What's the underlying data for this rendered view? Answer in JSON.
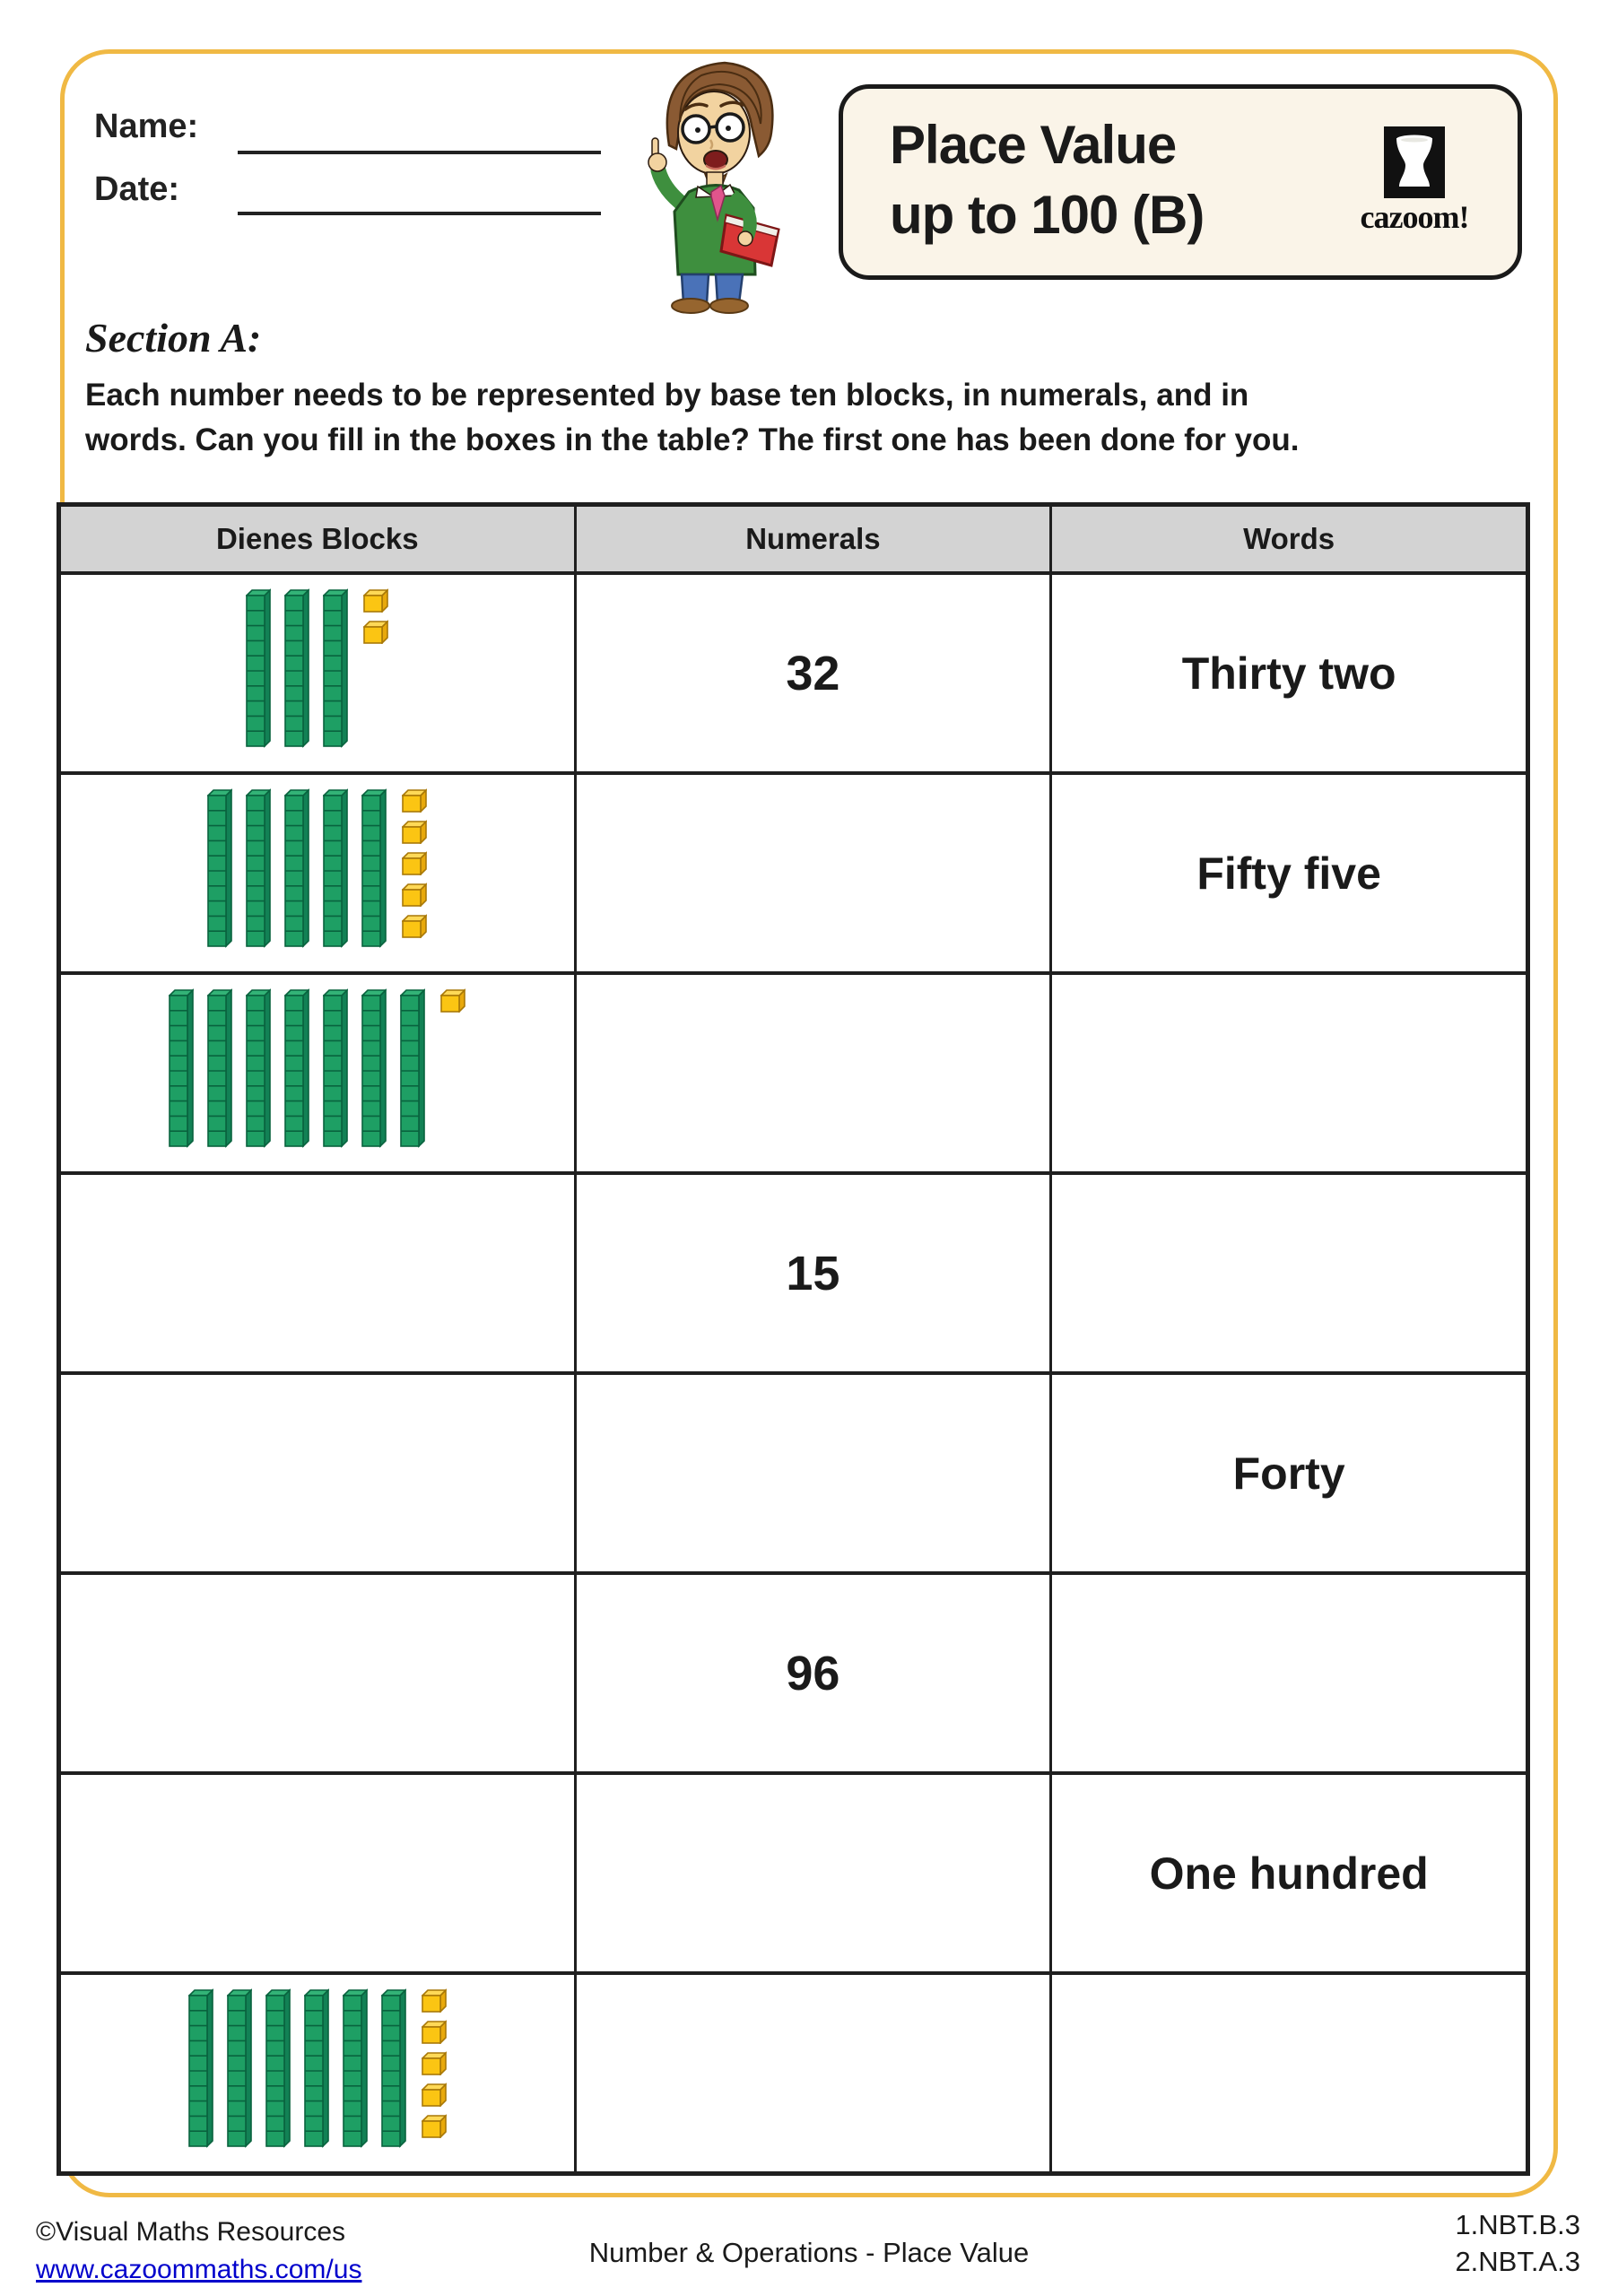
{
  "header": {
    "name_label": "Name:",
    "date_label": "Date:",
    "title_line1": "Place Value",
    "title_line2": "up to 100 (B)",
    "logo_text": "cazoom!"
  },
  "section": {
    "heading": "Section A:",
    "instructions_line1": "Each number needs to be represented by base ten blocks, in numerals, and in",
    "instructions_line2": "words. Can you fill in the boxes in the table? The first one has been done for you."
  },
  "table": {
    "columns": [
      "Dienes Blocks",
      "Numerals",
      "Words"
    ],
    "rows": [
      {
        "blocks": {
          "rods": 3,
          "units": 2
        },
        "numeral": "32",
        "word": "Thirty two"
      },
      {
        "blocks": {
          "rods": 5,
          "units": 5
        },
        "numeral": "",
        "word": "Fifty five"
      },
      {
        "blocks": {
          "rods": 7,
          "units": 1
        },
        "numeral": "",
        "word": ""
      },
      {
        "blocks": null,
        "numeral": "15",
        "word": ""
      },
      {
        "blocks": null,
        "numeral": "",
        "word": "Forty"
      },
      {
        "blocks": null,
        "numeral": "96",
        "word": ""
      },
      {
        "blocks": null,
        "numeral": "",
        "word": "One hundred"
      },
      {
        "blocks": {
          "rods": 6,
          "units": 5
        },
        "numeral": "",
        "word": ""
      }
    ]
  },
  "footer": {
    "copyright": "©Visual Maths Resources",
    "url": "www.cazoommaths.com/us",
    "center": "Number & Operations - Place Value",
    "standards": [
      "1.NBT.B.3",
      "2.NBT.A.3"
    ]
  },
  "colors": {
    "border_gold": "#F0B944",
    "rod_front": "#1E9F64",
    "rod_top": "#33B377",
    "rod_side": "#128155",
    "rod_outline": "#09633E",
    "cube_front": "#FBC513",
    "cube_top": "#FFD957",
    "cube_side": "#E8A90C",
    "cube_outline": "#A97908",
    "link_blue": "#0000CC",
    "header_gray": "#D3D3D3",
    "title_bg": "#FAF4E8"
  }
}
